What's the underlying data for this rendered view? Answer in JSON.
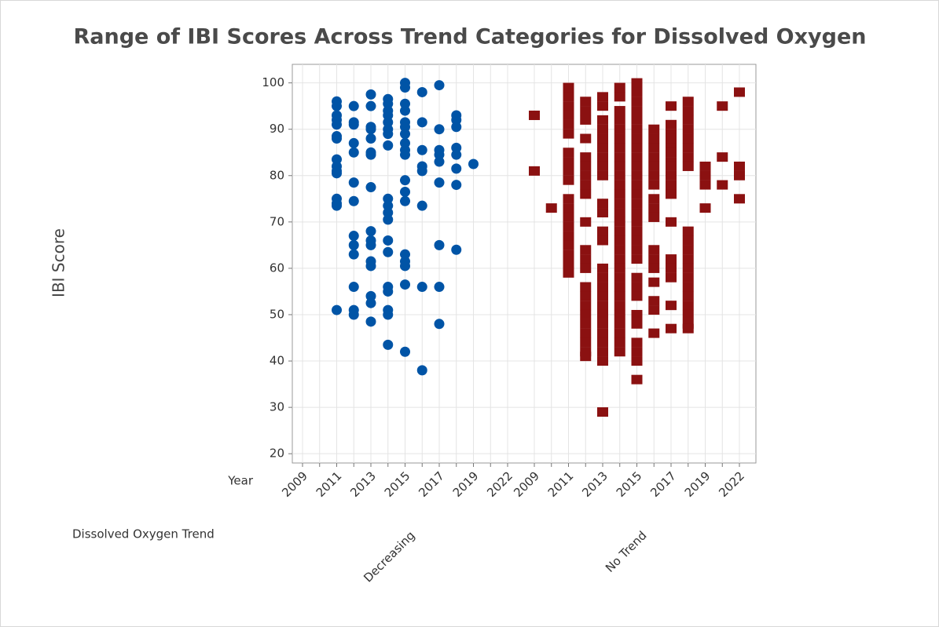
{
  "chart_data": {
    "type": "individual-value",
    "title": "Range of IBI Scores Across Trend Categories for Dissolved Oxygen",
    "ylabel": "IBI Score",
    "xlabel": "Year",
    "group_label": "Dissolved Oxygen Trend",
    "categories": [
      "2009",
      null,
      "2011",
      null,
      "2013",
      null,
      "2015",
      null,
      "2017",
      null,
      "2019",
      null,
      "2022"
    ],
    "ylim": [
      18,
      104
    ],
    "yticks": [
      20,
      30,
      40,
      50,
      60,
      70,
      80,
      90,
      100
    ],
    "grid": true,
    "series": [
      {
        "name": "Decreasing",
        "color": "#0054a6",
        "marker": "circle",
        "values": [
          [],
          [],
          [
            96,
            95,
            93,
            92,
            91,
            88.5,
            88,
            83.5,
            82,
            81,
            80.5,
            75,
            74,
            73.5,
            51
          ],
          [
            95,
            91.5,
            91,
            87,
            85,
            78.5,
            74.5,
            67,
            65,
            63,
            56,
            51,
            50
          ],
          [
            97.5,
            95,
            90.5,
            90,
            88,
            85,
            84.5,
            77.5,
            68,
            66,
            65,
            61.5,
            60.5,
            54,
            52.5,
            48.5
          ],
          [
            96.5,
            95.5,
            94,
            93,
            91.5,
            90,
            89,
            86.5,
            75,
            73.5,
            72,
            70.5,
            66,
            63.5,
            56,
            55,
            51,
            50,
            43.5
          ],
          [
            100,
            99,
            95.5,
            94,
            91.5,
            90.5,
            89,
            87,
            85.5,
            84.5,
            79,
            76.5,
            74.5,
            63,
            61.5,
            60.5,
            56.5,
            42
          ],
          [
            98,
            91.5,
            85.5,
            82,
            81,
            73.5,
            56,
            38
          ],
          [
            99.5,
            90,
            85.5,
            84.5,
            83,
            78.5,
            65,
            56,
            48
          ],
          [
            93,
            92,
            90.5,
            86,
            84.5,
            81.5,
            78,
            64
          ],
          [
            82.5
          ],
          [],
          []
        ]
      },
      {
        "name": "No Trend",
        "color": "#8b1111",
        "marker": "square",
        "values": [
          [
            93,
            81
          ],
          [
            73
          ],
          [
            99,
            97,
            95,
            93,
            91,
            89,
            85,
            83,
            81,
            79,
            75,
            73,
            71,
            69,
            67,
            65,
            63,
            61,
            59
          ],
          [
            96,
            94,
            92,
            88,
            84,
            82,
            80,
            78,
            76,
            70,
            64,
            62,
            60,
            56,
            54,
            52,
            50,
            48,
            46,
            44,
            42,
            41
          ],
          [
            97,
            95,
            92,
            90,
            88,
            86,
            84,
            82,
            80,
            74,
            72,
            68,
            66,
            60,
            58,
            56,
            54,
            52,
            50,
            48,
            46,
            44,
            42,
            40,
            29
          ],
          [
            99,
            97,
            94,
            92,
            90,
            88,
            86,
            84,
            82,
            80,
            78,
            76,
            74,
            72,
            70,
            68,
            66,
            64,
            62,
            60,
            58,
            56,
            54,
            52,
            50,
            48,
            46,
            44,
            42
          ],
          [
            100,
            98,
            96,
            94,
            92,
            90,
            88,
            86,
            84,
            82,
            80,
            78,
            76,
            74,
            72,
            70,
            68,
            66,
            64,
            62,
            58,
            56,
            54,
            50,
            48,
            44,
            42,
            40,
            36
          ],
          [
            90,
            88,
            86,
            84,
            82,
            80,
            78,
            75,
            73,
            71,
            64,
            62,
            60,
            57,
            53,
            51,
            46
          ],
          [
            95,
            91,
            89,
            88,
            86,
            85,
            83,
            82,
            80,
            78,
            76,
            70,
            62,
            60,
            58,
            52,
            47
          ],
          [
            96,
            94,
            92,
            90,
            88,
            86,
            84,
            82,
            68,
            66,
            64,
            62,
            60,
            58,
            56,
            54,
            52,
            50,
            48,
            47
          ],
          [
            82,
            80,
            78,
            73
          ],
          [
            95,
            84,
            78
          ],
          [
            98,
            82,
            80,
            75
          ]
        ]
      }
    ]
  }
}
